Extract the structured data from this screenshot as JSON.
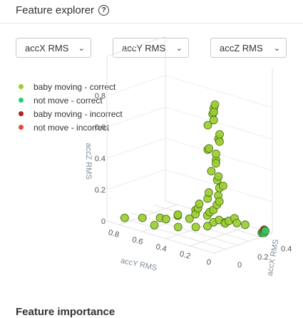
{
  "header": {
    "title": "Feature explorer",
    "help_icon": "question-circle-icon"
  },
  "selectors": [
    {
      "value": "accX RMS"
    },
    {
      "value": "accY RMS"
    },
    {
      "value": "accZ RMS"
    }
  ],
  "footer": {
    "next_section_title": "Feature importance"
  },
  "chart_data": {
    "type": "scatter3d",
    "legend": [
      {
        "name": "baby moving - correct",
        "color": "#9acd32"
      },
      {
        "name": "not move - correct",
        "color": "#2ecc71"
      },
      {
        "name": "baby moving - incorrect",
        "color": "#b22222"
      },
      {
        "name": "not move - incorrect",
        "color": "#e74c3c"
      }
    ],
    "axes": {
      "x": {
        "title": "accX RMS",
        "ticks": [
          "0",
          "0.2",
          "0.4"
        ]
      },
      "y": {
        "title": "accY RMS",
        "ticks": [
          "0",
          "0.2",
          "0.4",
          "0.6",
          "0.8"
        ]
      },
      "z": {
        "title": "accZ RMS",
        "ticks": [
          "0",
          "0.2",
          "0.4",
          "0.6",
          "0.8"
        ]
      }
    },
    "series": [
      {
        "name": "baby moving - correct",
        "points": [
          [
            0.05,
            0.05,
            0.9
          ],
          [
            0.06,
            0.05,
            0.92
          ],
          [
            0.04,
            0.04,
            0.88
          ],
          [
            0.05,
            0.06,
            0.86
          ],
          [
            0.1,
            0.1,
            0.8
          ],
          [
            0.05,
            0.1,
            0.78
          ],
          [
            0.1,
            0.05,
            0.72
          ],
          [
            0.12,
            0.08,
            0.68
          ],
          [
            0.15,
            0.1,
            0.65
          ],
          [
            0.08,
            0.12,
            0.62
          ],
          [
            0.1,
            0.15,
            0.6
          ],
          [
            0.14,
            0.12,
            0.57
          ],
          [
            0.12,
            0.1,
            0.54
          ],
          [
            0.16,
            0.14,
            0.5
          ],
          [
            0.1,
            0.12,
            0.47
          ],
          [
            0.12,
            0.08,
            0.44
          ],
          [
            0.15,
            0.12,
            0.4
          ],
          [
            0.18,
            0.1,
            0.36
          ],
          [
            0.2,
            0.15,
            0.33
          ],
          [
            0.16,
            0.2,
            0.3
          ],
          [
            0.22,
            0.18,
            0.27
          ],
          [
            0.2,
            0.25,
            0.24
          ],
          [
            0.25,
            0.2,
            0.22
          ],
          [
            0.18,
            0.3,
            0.2
          ],
          [
            0.28,
            0.25,
            0.18
          ],
          [
            0.22,
            0.35,
            0.15
          ],
          [
            0.3,
            0.3,
            0.13
          ],
          [
            0.25,
            0.4,
            0.12
          ],
          [
            0.32,
            0.35,
            0.1
          ],
          [
            0.2,
            0.5,
            0.08
          ],
          [
            0.3,
            0.45,
            0.07
          ],
          [
            0.35,
            0.4,
            0.06
          ],
          [
            0.15,
            0.6,
            0.05
          ],
          [
            0.25,
            0.55,
            0.05
          ],
          [
            0.1,
            0.7,
            0.04
          ],
          [
            0.05,
            0.8,
            0.03
          ],
          [
            0.3,
            0.5,
            0.03
          ],
          [
            0.4,
            0.35,
            0.03
          ],
          [
            0.35,
            0.25,
            0.05
          ],
          [
            0.38,
            0.2,
            0.08
          ],
          [
            0.42,
            0.15,
            0.04
          ],
          [
            0.4,
            0.3,
            0.02
          ],
          [
            0.45,
            0.25,
            0.02
          ],
          [
            0.2,
            0.2,
            0.1
          ],
          [
            0.15,
            0.3,
            0.06
          ],
          [
            0.25,
            0.3,
            0.04
          ],
          [
            0.28,
            0.15,
            0.1
          ],
          [
            0.1,
            0.4,
            0.05
          ],
          [
            0.05,
            0.55,
            0.04
          ],
          [
            0.2,
            0.6,
            0.03
          ]
        ]
      },
      {
        "name": "not move - correct",
        "points": [
          [
            0.45,
            0.02,
            0.01
          ],
          [
            0.44,
            0.03,
            0.01
          ],
          [
            0.46,
            0.02,
            0.02
          ]
        ]
      },
      {
        "name": "baby moving - incorrect",
        "points": [
          [
            0.45,
            0.02,
            0.03
          ]
        ]
      },
      {
        "name": "not move - incorrect",
        "points": [
          [
            0.44,
            0.02,
            0.02
          ]
        ]
      }
    ]
  }
}
